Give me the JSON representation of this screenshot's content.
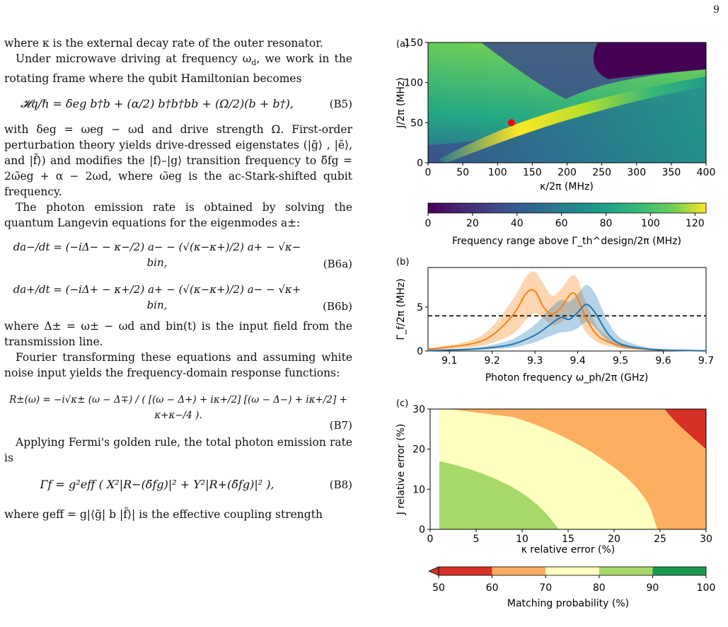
{
  "page_number": "9",
  "text": {
    "p1": "where κ is the external decay rate of the outer resonator.",
    "p2": "Under microwave driving at frequency ω",
    "p2b": "d",
    "p2c": ", we work in the rotating frame where the qubit Hamiltonian becomes",
    "eqB5": "𝓗q/ℏ = δeg b†b + (α/2) b†b†bb + (Ω/2)(b + b†),",
    "tagB5": "(B5)",
    "p3": "with δeg = ωeg − ωd and drive strength Ω. First-order perturbation theory yields drive-dressed eigenstates (|g̃⟩ , |ẽ⟩, and |f̃⟩) and modifies the |f⟩–|g⟩ transition frequency to δ̃fg = 2ω̃eg + α − 2ωd, where ω̃eg is the ac-Stark-shifted qubit frequency.",
    "p4": "The photon emission rate is obtained by solving the quantum Langevin equations for the eigenmodes a±:",
    "eqB6a": "da−/dt = (−iΔ− − κ−/2) a− − (√(κ−κ+)/2) a+ − √κ− bin,",
    "tagB6a": "(B6a)",
    "eqB6b": "da+/dt = (−iΔ+ − κ+/2) a+ − (√(κ−κ+)/2) a− − √κ+ bin,",
    "tagB6b": "(B6b)",
    "p5": "where Δ± = ω± − ωd and bin(t) is the input field from the transmission line.",
    "p6": "Fourier transforming these equations and assuming white noise input yields the frequency-domain response functions:",
    "eqB7": "R±(ω) = −i√κ± (ω − Δ∓) / ( [(ω − Δ+) + iκ+/2] [(ω − Δ−) + iκ+/2] + κ+κ−/4 ).",
    "tagB7": "(B7)",
    "p7": "Applying Fermi's golden rule, the total photon emission rate is",
    "eqB8": "Γf = g²eff ( X²|R−(δ̃fg)|² + Y²|R+(δ̃fg)|² ),",
    "tagB8": "(B8)",
    "p8": "where geff = g|⟨g̃| b |f̃⟩| is the effective coupling strength"
  },
  "panels": {
    "a_label": "(a)",
    "b_label": "(b)",
    "c_label": "(c)"
  },
  "chart_data": [
    {
      "type": "heatmap",
      "panel": "(a)",
      "xlabel": "κ/2π (MHz)",
      "ylabel": "J/2π (MHz)",
      "xlim": [
        0,
        400
      ],
      "ylim": [
        0,
        150
      ],
      "xticks": [
        0,
        50,
        100,
        150,
        200,
        250,
        300,
        350,
        400
      ],
      "yticks": [
        0,
        50,
        100,
        150
      ],
      "colorbar": {
        "label": "Frequency range above Γ_th^design/2π (MHz)",
        "ticks": [
          0,
          20,
          40,
          60,
          80,
          100,
          120
        ],
        "range": [
          0,
          125
        ],
        "colormap": "viridis"
      },
      "marker": {
        "x": 120,
        "y": 50,
        "color": "#ff0000"
      },
      "description_regions": [
        {
          "region": "upper-right",
          "value": 0
        },
        {
          "region": "ridge J≈0.35κ+8",
          "value": 125
        },
        {
          "region": "low-J",
          "value": 40
        }
      ]
    },
    {
      "type": "line",
      "panel": "(b)",
      "xlabel": "Photon frequency ω_ph/2π (GHz)",
      "ylabel": "Γ_f/2π (MHz)",
      "xlim": [
        9.05,
        9.7
      ],
      "ylim": [
        0,
        9.5
      ],
      "xticks": [
        9.1,
        9.2,
        9.3,
        9.4,
        9.5,
        9.6,
        9.7
      ],
      "yticks": [
        0,
        5
      ],
      "threshold": 4.0,
      "series": [
        {
          "color": "#ff7f0e",
          "x": [
            9.05,
            9.15,
            9.2,
            9.25,
            9.28,
            9.3,
            9.32,
            9.34,
            9.36,
            9.38,
            9.39,
            9.4,
            9.42,
            9.45,
            9.5,
            9.55,
            9.6,
            9.7
          ],
          "y": [
            0.2,
            0.8,
            1.8,
            4.2,
            6.6,
            6.8,
            5.0,
            4.2,
            4.9,
            6.3,
            6.6,
            6.0,
            3.7,
            1.6,
            0.6,
            0.25,
            0.1,
            0.02
          ],
          "band_upper": [
            0.3,
            1.2,
            2.8,
            6.0,
            8.5,
            9.0,
            7.6,
            6.3,
            7.0,
            8.3,
            8.6,
            8.1,
            5.5,
            2.5,
            0.9,
            0.35,
            0.15,
            0.03
          ],
          "band_lower": [
            0.1,
            0.4,
            0.9,
            2.0,
            3.6,
            4.3,
            3.7,
            3.0,
            3.2,
            4.0,
            4.3,
            3.9,
            2.1,
            0.9,
            0.3,
            0.15,
            0.05,
            0.01
          ]
        },
        {
          "color": "#1f77b4",
          "x": [
            9.05,
            9.15,
            9.2,
            9.25,
            9.3,
            9.33,
            9.36,
            9.38,
            9.4,
            9.42,
            9.44,
            9.47,
            9.5,
            9.55,
            9.6,
            9.7
          ],
          "y": [
            0.05,
            0.2,
            0.4,
            0.8,
            1.8,
            2.8,
            3.8,
            3.6,
            4.4,
            5.3,
            4.4,
            2.0,
            0.8,
            0.3,
            0.12,
            0.03
          ],
          "band_upper": [
            0.1,
            0.35,
            0.7,
            1.4,
            3.0,
            4.6,
            5.8,
            5.6,
            6.5,
            7.5,
            6.6,
            3.4,
            1.5,
            0.55,
            0.2,
            0.05
          ],
          "band_lower": [
            0.02,
            0.1,
            0.2,
            0.4,
            1.0,
            1.6,
            2.1,
            2.2,
            2.6,
            3.3,
            2.7,
            1.1,
            0.4,
            0.15,
            0.06,
            0.01
          ]
        }
      ]
    },
    {
      "type": "contour",
      "panel": "(c)",
      "xlabel": "κ relative error (%)",
      "ylabel": "J relative error (%)",
      "xlim": [
        0,
        30
      ],
      "ylim": [
        0,
        30
      ],
      "xticks": [
        0,
        5,
        10,
        15,
        20,
        25,
        30
      ],
      "yticks": [
        0,
        10,
        20,
        30
      ],
      "colorbar": {
        "label": "Matching probability (%)",
        "ticks": [
          50,
          60,
          70,
          80,
          90,
          100
        ],
        "extend": "min"
      },
      "levels": [
        {
          "range": "80-90",
          "color": "#a6d96a",
          "boundary": [
            [
              1,
              17
            ],
            [
              5,
              15
            ],
            [
              9,
              10
            ],
            [
              12,
              5
            ],
            [
              14,
              0
            ]
          ]
        },
        {
          "range": "70-80",
          "color": "#ffffbf",
          "boundary": [
            [
              2,
              30
            ],
            [
              9,
              28
            ],
            [
              16,
              22
            ],
            [
              21,
              14
            ],
            [
              24,
              5
            ],
            [
              24.7,
              0
            ]
          ]
        },
        {
          "range": "60-70",
          "color": "#fdae61",
          "boundary": [
            [
              25.5,
              30
            ],
            [
              27.5,
              25
            ],
            [
              30,
              20
            ]
          ]
        },
        {
          "range": "50-60",
          "color": "#d73027"
        }
      ]
    }
  ]
}
